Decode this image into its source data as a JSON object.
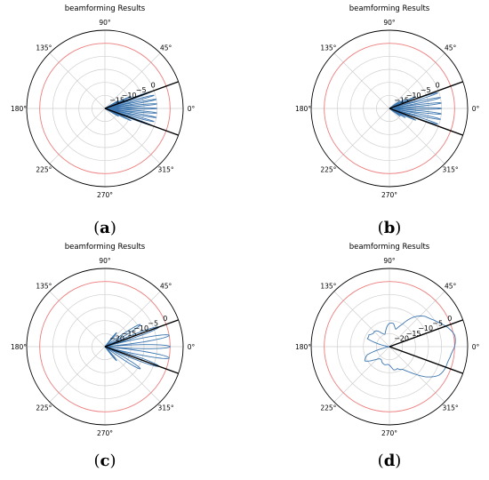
{
  "chart_data": [
    {
      "type": "polar",
      "panel_label": "a",
      "title": "beamforming Results",
      "angle_ticks": [
        "0°",
        "45°",
        "90°",
        "135°",
        "180°",
        "225°",
        "270°",
        "315°"
      ],
      "angle_tick_degrees": [
        0,
        45,
        90,
        135,
        180,
        225,
        270,
        315
      ],
      "radial_ticks": [
        "0",
        "−5",
        "−10",
        "−15"
      ],
      "radial_tick_values": [
        0,
        -5,
        -10,
        -15
      ],
      "radial_range": [
        -20,
        10
      ],
      "reference_circle_db": 5,
      "reference_color": "#f08080",
      "sector_edges_deg": [
        -20,
        20
      ],
      "beam_color": "#3b75af",
      "lobes": [
        {
          "center_deg": 0,
          "peak_db": 0,
          "width_deg": 2.5
        },
        {
          "center_deg": 5,
          "peak_db": 0,
          "width_deg": 2.5
        },
        {
          "center_deg": -5,
          "peak_db": 0,
          "width_deg": 2.5
        },
        {
          "center_deg": 10,
          "peak_db": 0,
          "width_deg": 2.5
        },
        {
          "center_deg": -10,
          "peak_db": 0,
          "width_deg": 2.5
        },
        {
          "center_deg": 15,
          "peak_db": -0.5,
          "width_deg": 2.5
        },
        {
          "center_deg": -15,
          "peak_db": -0.5,
          "width_deg": 2.5
        },
        {
          "center_deg": 20,
          "peak_db": -1,
          "width_deg": 2.5
        },
        {
          "center_deg": -20,
          "peak_db": -1,
          "width_deg": 2.5
        },
        {
          "center_deg": 25,
          "peak_db": -9,
          "width_deg": 2.5
        },
        {
          "center_deg": -25,
          "peak_db": -9,
          "width_deg": 2.5
        },
        {
          "center_deg": 30,
          "peak_db": -14,
          "width_deg": 2.5
        },
        {
          "center_deg": -30,
          "peak_db": -14,
          "width_deg": 2.5
        }
      ]
    },
    {
      "type": "polar",
      "panel_label": "b",
      "title": "beamforming Results",
      "angle_ticks": [
        "0°",
        "45°",
        "90°",
        "135°",
        "180°",
        "225°",
        "270°",
        "315°"
      ],
      "angle_tick_degrees": [
        0,
        45,
        90,
        135,
        180,
        225,
        270,
        315
      ],
      "radial_ticks": [
        "0",
        "−5",
        "−10",
        "−15"
      ],
      "radial_tick_values": [
        0,
        -5,
        -10,
        -15
      ],
      "radial_range": [
        -20,
        10
      ],
      "reference_circle_db": 5,
      "reference_color": "#f08080",
      "sector_edges_deg": [
        -20,
        20
      ],
      "beam_color": "#3b75af",
      "lobes": [
        {
          "center_deg": 0,
          "peak_db": 0,
          "width_deg": 3
        },
        {
          "center_deg": 6,
          "peak_db": 0,
          "width_deg": 3
        },
        {
          "center_deg": -6,
          "peak_db": 0,
          "width_deg": 3
        },
        {
          "center_deg": 12,
          "peak_db": 0,
          "width_deg": 3
        },
        {
          "center_deg": -12,
          "peak_db": 0,
          "width_deg": 3
        },
        {
          "center_deg": 18,
          "peak_db": -0.5,
          "width_deg": 3
        },
        {
          "center_deg": -18,
          "peak_db": -0.5,
          "width_deg": 3
        },
        {
          "center_deg": 24,
          "peak_db": -9,
          "width_deg": 3
        },
        {
          "center_deg": -24,
          "peak_db": -9,
          "width_deg": 3
        },
        {
          "center_deg": 30,
          "peak_db": -13,
          "width_deg": 3
        },
        {
          "center_deg": -30,
          "peak_db": -13,
          "width_deg": 3
        },
        {
          "center_deg": 36,
          "peak_db": -15,
          "width_deg": 3
        },
        {
          "center_deg": -36,
          "peak_db": -15,
          "width_deg": 3
        }
      ]
    },
    {
      "type": "polar",
      "panel_label": "c",
      "title": "beamforming Results",
      "angle_ticks": [
        "0°",
        "45°",
        "90°",
        "135°",
        "180°",
        "225°",
        "270°",
        "315°"
      ],
      "angle_tick_degrees": [
        0,
        45,
        90,
        135,
        180,
        225,
        270,
        315
      ],
      "radial_ticks": [
        "0",
        "−5",
        "−10",
        "−15",
        "−20"
      ],
      "radial_tick_values": [
        0,
        -5,
        -10,
        -15,
        -20
      ],
      "radial_range": [
        -25,
        5
      ],
      "reference_circle_db": 0,
      "reference_color": "#f08080",
      "sector_edges_deg": [
        -20,
        20
      ],
      "beam_color": "#3b75af",
      "lobes": [
        {
          "center_deg": 0,
          "peak_db": 0,
          "width_deg": 5
        },
        {
          "center_deg": 10,
          "peak_db": 0,
          "width_deg": 5
        },
        {
          "center_deg": -10,
          "peak_db": 0,
          "width_deg": 5
        },
        {
          "center_deg": 20,
          "peak_db": -3,
          "width_deg": 5
        },
        {
          "center_deg": -20,
          "peak_db": -3,
          "width_deg": 5
        },
        {
          "center_deg": 32,
          "peak_db": -9,
          "width_deg": 6
        },
        {
          "center_deg": -32,
          "peak_db": -9,
          "width_deg": 6
        },
        {
          "center_deg": 50,
          "peak_db": -18,
          "width_deg": 7
        },
        {
          "center_deg": -50,
          "peak_db": -18,
          "width_deg": 7
        }
      ]
    },
    {
      "type": "polar",
      "panel_label": "d",
      "title": "beamforming Results",
      "angle_ticks": [
        "0°",
        "45°",
        "90°",
        "135°",
        "180°",
        "225°",
        "270°",
        "315°"
      ],
      "angle_tick_degrees": [
        0,
        45,
        90,
        135,
        180,
        225,
        270,
        315
      ],
      "radial_ticks": [
        "0",
        "−5",
        "−10",
        "−15",
        "−20"
      ],
      "radial_tick_values": [
        0,
        -5,
        -10,
        -15,
        -20
      ],
      "radial_range": [
        -25,
        5
      ],
      "reference_circle_db": 0,
      "reference_color": "#f08080",
      "sector_edges_deg": [
        -20,
        20
      ],
      "beam_color": "#3b75af",
      "broad_pattern": {
        "angles_deg": [
          0,
          10,
          20,
          30,
          40,
          50,
          60,
          70,
          80,
          90,
          100,
          110,
          120,
          130,
          140,
          150,
          160,
          170,
          180,
          190,
          200,
          210,
          220,
          230,
          240,
          250,
          260,
          270,
          280,
          290,
          300,
          310,
          320,
          330,
          340,
          350,
          360
        ],
        "values_db": [
          0,
          -0.5,
          -2,
          -4,
          -7,
          -11,
          -15,
          -17,
          -16,
          -17,
          -18,
          -19,
          -19,
          -18,
          -17,
          -15,
          -16,
          -25,
          -25,
          -25,
          -16,
          -15,
          -17,
          -18,
          -19,
          -19,
          -18,
          -17,
          -16,
          -17,
          -15,
          -11,
          -7,
          -4,
          -2,
          -0.5,
          0
        ]
      }
    }
  ]
}
